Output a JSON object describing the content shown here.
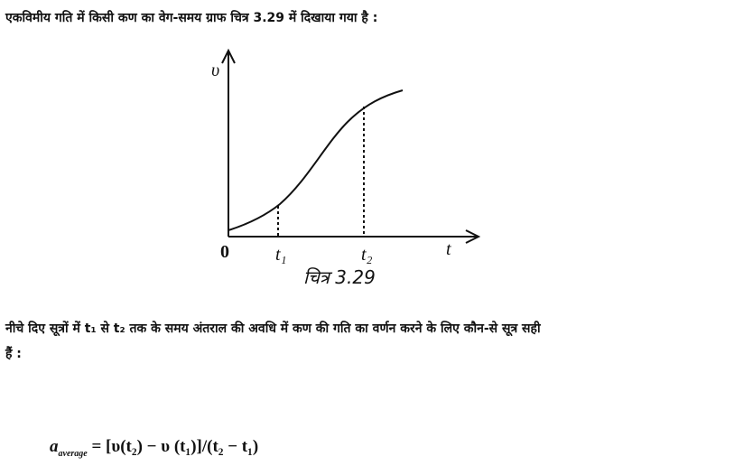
{
  "intro": "एकविमीय गति में किसी कण का वेग-समय ग्राफ चित्र 3.29 में दिखाया गया है :",
  "figure": {
    "y_axis_label": "υ",
    "x_axis_label": "t",
    "origin_label": "0",
    "t1_label": "t₁",
    "t2_label": "t₂",
    "caption": "चित्र 3.29"
  },
  "question": {
    "lines": [
      "नीचे दिए सूत्रों में t₁ से t₂ तक के समय अंतराल की अवधि में कण की गति का वर्णन करने के लिए कौन-से सूत्र सही",
      "हैं :"
    ]
  },
  "formula": {
    "symbol": "a",
    "subscript": "average",
    "expression": "= [υ(t₂) − υ (t₁)]/(t₂ − t₁)"
  }
}
